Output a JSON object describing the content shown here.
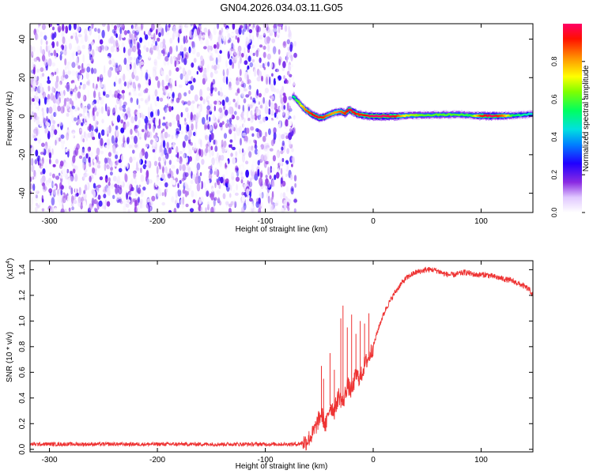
{
  "figure_title": "GN04.2026.034.03.11.G05",
  "chart_data": [
    {
      "type": "heatmap",
      "title": "",
      "xlabel": "Height of straight line (km)",
      "ylabel": "Frequency (Hz)",
      "xlim": [
        -318,
        148
      ],
      "ylim": [
        -50,
        48
      ],
      "xticks": [
        -300,
        -200,
        -100,
        0,
        100
      ],
      "yticks": [
        -40,
        -20,
        0,
        20,
        40
      ],
      "colorbar": {
        "label": "Normalized spectral amplitude",
        "range": [
          0,
          1
        ],
        "ticks": [
          "0.0",
          "0.2",
          "0.4",
          "0.6",
          "0.8"
        ],
        "colors": [
          "#ffffff",
          "#b040ff",
          "#4000ff",
          "#0000ff",
          "#00c8ff",
          "#00ff80",
          "#80ff00",
          "#ffff00",
          "#ff8000",
          "#ff0000",
          "#ff0066"
        ]
      },
      "noise_region": {
        "x_range": [
          -318,
          -72
        ],
        "y_range": [
          -50,
          48
        ],
        "amplitude_range": [
          0.0,
          0.15
        ]
      },
      "signal_trace": {
        "x": [
          -74,
          -70,
          -66,
          -62,
          -58,
          -54,
          -50,
          -46,
          -42,
          -38,
          -34,
          -30,
          -26,
          -22,
          -18,
          -14,
          -10,
          -5,
          0,
          10,
          20,
          30,
          40,
          50,
          60,
          70,
          80,
          90,
          100,
          110,
          120,
          130,
          140,
          148
        ],
        "freq": [
          10,
          8,
          5,
          3,
          1.5,
          0,
          -0.8,
          -0.5,
          0.5,
          1.5,
          2,
          2.5,
          1.5,
          3.5,
          2,
          1,
          0.5,
          0.2,
          0,
          0,
          0,
          0.3,
          0.5,
          0.6,
          0.7,
          0.8,
          0.8,
          0.5,
          0.2,
          0.1,
          0.2,
          0.4,
          0.8,
          1.2
        ],
        "amp": [
          0.5,
          0.6,
          0.75,
          0.85,
          0.9,
          0.95,
          0.95,
          0.9,
          0.85,
          0.8,
          0.8,
          0.85,
          0.9,
          0.95,
          0.95,
          0.9,
          0.9,
          0.95,
          1.0,
          1.0,
          0.95,
          0.7,
          0.65,
          0.6,
          0.6,
          0.6,
          0.6,
          0.55,
          0.9,
          1.0,
          0.85,
          0.55,
          0.5,
          0.45
        ]
      }
    },
    {
      "type": "line",
      "title": "",
      "xlabel": "Height of straight line (km)",
      "ylabel": "SNR (10 * v/v)",
      "multiplier_label": "(x10",
      "multiplier_exp": "4",
      "multiplier_close": ")",
      "xlim": [
        -318,
        148
      ],
      "ylim": [
        -0.02,
        1.47
      ],
      "xticks": [
        -300,
        -200,
        -100,
        0,
        100
      ],
      "yticks": [
        "0.0",
        "0.2",
        "0.4",
        "0.6",
        "0.8",
        "1.0",
        "1.2",
        "1.4"
      ],
      "series": [
        {
          "name": "SNR",
          "color": "#ee3333",
          "x": [
            -318,
            -280,
            -240,
            -200,
            -160,
            -120,
            -90,
            -70,
            -62,
            -56,
            -52,
            -48,
            -44,
            -40,
            -36,
            -32,
            -28,
            -24,
            -20,
            -16,
            -12,
            -8,
            -4,
            0,
            4,
            8,
            12,
            16,
            20,
            25,
            30,
            35,
            40,
            45,
            50,
            55,
            60,
            65,
            70,
            75,
            80,
            85,
            90,
            95,
            100,
            105,
            110,
            115,
            120,
            125,
            130,
            135,
            140,
            145,
            148
          ],
          "y": [
            0.04,
            0.04,
            0.04,
            0.04,
            0.04,
            0.04,
            0.04,
            0.04,
            0.06,
            0.12,
            0.2,
            0.28,
            0.18,
            0.34,
            0.3,
            0.42,
            0.36,
            0.5,
            0.45,
            0.58,
            0.55,
            0.66,
            0.72,
            0.8,
            0.92,
            1.02,
            1.1,
            1.16,
            1.22,
            1.28,
            1.33,
            1.36,
            1.38,
            1.39,
            1.4,
            1.4,
            1.39,
            1.37,
            1.36,
            1.36,
            1.37,
            1.38,
            1.37,
            1.36,
            1.36,
            1.36,
            1.35,
            1.34,
            1.33,
            1.32,
            1.31,
            1.29,
            1.27,
            1.24,
            1.2
          ]
        }
      ],
      "spikes": [
        {
          "x": -48,
          "y": 0.65
        },
        {
          "x": -46,
          "y": 0.55
        },
        {
          "x": -40,
          "y": 0.75
        },
        {
          "x": -36,
          "y": 0.62
        },
        {
          "x": -30,
          "y": 1.02
        },
        {
          "x": -28,
          "y": 1.12
        },
        {
          "x": -24,
          "y": 0.95
        },
        {
          "x": -20,
          "y": 1.05
        },
        {
          "x": -16,
          "y": 0.9
        },
        {
          "x": -12,
          "y": 1.0
        },
        {
          "x": -8,
          "y": 0.98
        },
        {
          "x": -4,
          "y": 1.06
        }
      ]
    }
  ]
}
